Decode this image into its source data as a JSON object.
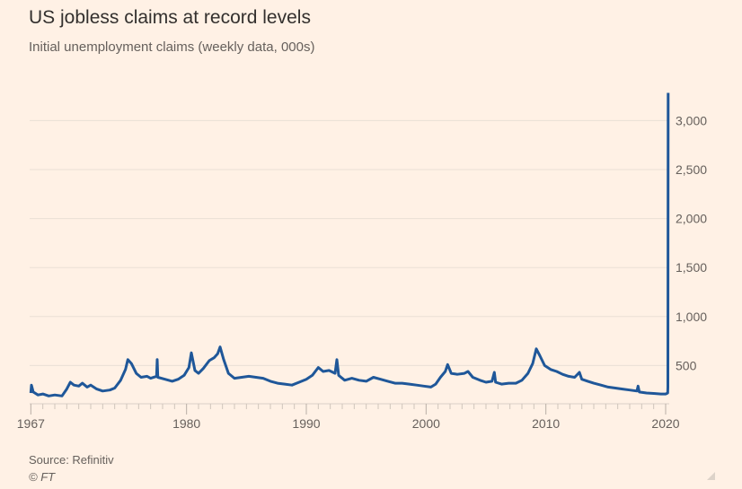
{
  "chart_data": {
    "type": "line",
    "title": "US jobless claims at record levels",
    "subtitle": "Initial unemployment claims (weekly data, 000s)",
    "xlabel": "",
    "ylabel": "",
    "xlim": [
      1966.9,
      2020.3
    ],
    "ylim": [
      0,
      3300
    ],
    "grid": true,
    "x_ticks": [
      "1967",
      "1980",
      "1990",
      "2000",
      "2010",
      "2020"
    ],
    "y_ticks": [
      "500",
      "1,000",
      "1,500",
      "2,000",
      "2,500",
      "3,000"
    ],
    "y_tick_values": [
      500,
      1000,
      1500,
      2000,
      2500,
      3000
    ],
    "series": [
      {
        "name": "Initial unemployment claims",
        "color": "#1f5799",
        "points": [
          [
            1967.0,
            220
          ],
          [
            1967.05,
            300
          ],
          [
            1967.2,
            230
          ],
          [
            1967.6,
            200
          ],
          [
            1968.0,
            210
          ],
          [
            1968.5,
            190
          ],
          [
            1969.0,
            200
          ],
          [
            1969.6,
            190
          ],
          [
            1970.0,
            260
          ],
          [
            1970.3,
            330
          ],
          [
            1970.6,
            300
          ],
          [
            1971.0,
            290
          ],
          [
            1971.3,
            320
          ],
          [
            1971.7,
            280
          ],
          [
            1972.0,
            300
          ],
          [
            1972.5,
            260
          ],
          [
            1973.0,
            240
          ],
          [
            1973.6,
            250
          ],
          [
            1974.0,
            270
          ],
          [
            1974.5,
            350
          ],
          [
            1974.9,
            460
          ],
          [
            1975.1,
            560
          ],
          [
            1975.4,
            520
          ],
          [
            1975.8,
            420
          ],
          [
            1976.2,
            380
          ],
          [
            1976.7,
            390
          ],
          [
            1977.0,
            370
          ],
          [
            1977.5,
            390
          ],
          [
            1977.55,
            560
          ],
          [
            1977.6,
            380
          ],
          [
            1978.2,
            360
          ],
          [
            1978.8,
            340
          ],
          [
            1979.3,
            360
          ],
          [
            1979.8,
            400
          ],
          [
            1980.2,
            480
          ],
          [
            1980.4,
            630
          ],
          [
            1980.7,
            450
          ],
          [
            1981.0,
            420
          ],
          [
            1981.4,
            470
          ],
          [
            1981.9,
            550
          ],
          [
            1982.3,
            580
          ],
          [
            1982.6,
            620
          ],
          [
            1982.8,
            690
          ],
          [
            1983.1,
            560
          ],
          [
            1983.5,
            420
          ],
          [
            1984.0,
            370
          ],
          [
            1984.6,
            380
          ],
          [
            1985.2,
            390
          ],
          [
            1985.8,
            380
          ],
          [
            1986.4,
            370
          ],
          [
            1987.0,
            340
          ],
          [
            1987.6,
            320
          ],
          [
            1988.2,
            310
          ],
          [
            1988.8,
            300
          ],
          [
            1989.4,
            330
          ],
          [
            1990.0,
            360
          ],
          [
            1990.5,
            400
          ],
          [
            1991.0,
            480
          ],
          [
            1991.4,
            440
          ],
          [
            1991.9,
            450
          ],
          [
            1992.4,
            420
          ],
          [
            1992.55,
            560
          ],
          [
            1992.7,
            400
          ],
          [
            1993.2,
            350
          ],
          [
            1993.8,
            370
          ],
          [
            1994.4,
            350
          ],
          [
            1995.0,
            340
          ],
          [
            1995.6,
            380
          ],
          [
            1996.2,
            360
          ],
          [
            1996.8,
            340
          ],
          [
            1997.4,
            320
          ],
          [
            1998.0,
            320
          ],
          [
            1998.6,
            310
          ],
          [
            1999.2,
            300
          ],
          [
            1999.8,
            290
          ],
          [
            2000.4,
            280
          ],
          [
            2000.8,
            310
          ],
          [
            2001.2,
            380
          ],
          [
            2001.6,
            440
          ],
          [
            2001.8,
            510
          ],
          [
            2002.1,
            420
          ],
          [
            2002.6,
            410
          ],
          [
            2003.2,
            420
          ],
          [
            2003.5,
            440
          ],
          [
            2003.9,
            380
          ],
          [
            2004.5,
            350
          ],
          [
            2005.0,
            330
          ],
          [
            2005.5,
            340
          ],
          [
            2005.7,
            430
          ],
          [
            2005.8,
            330
          ],
          [
            2006.3,
            310
          ],
          [
            2006.9,
            320
          ],
          [
            2007.5,
            320
          ],
          [
            2008.0,
            350
          ],
          [
            2008.5,
            420
          ],
          [
            2008.9,
            520
          ],
          [
            2009.2,
            670
          ],
          [
            2009.5,
            600
          ],
          [
            2009.9,
            500
          ],
          [
            2010.4,
            460
          ],
          [
            2010.9,
            440
          ],
          [
            2011.4,
            410
          ],
          [
            2011.9,
            390
          ],
          [
            2012.4,
            380
          ],
          [
            2012.8,
            430
          ],
          [
            2013.0,
            360
          ],
          [
            2013.5,
            340
          ],
          [
            2014.0,
            320
          ],
          [
            2014.6,
            300
          ],
          [
            2015.2,
            280
          ],
          [
            2015.8,
            270
          ],
          [
            2016.4,
            260
          ],
          [
            2017.0,
            250
          ],
          [
            2017.6,
            240
          ],
          [
            2017.7,
            290
          ],
          [
            2017.8,
            230
          ],
          [
            2018.4,
            220
          ],
          [
            2019.0,
            215
          ],
          [
            2019.6,
            210
          ],
          [
            2020.0,
            210
          ],
          [
            2020.17,
            220
          ],
          [
            2020.19,
            280
          ],
          [
            2020.21,
            3283
          ]
        ]
      }
    ],
    "legend": "none"
  },
  "footer": {
    "source": "Source: Refinitiv",
    "credit": "© FT"
  }
}
